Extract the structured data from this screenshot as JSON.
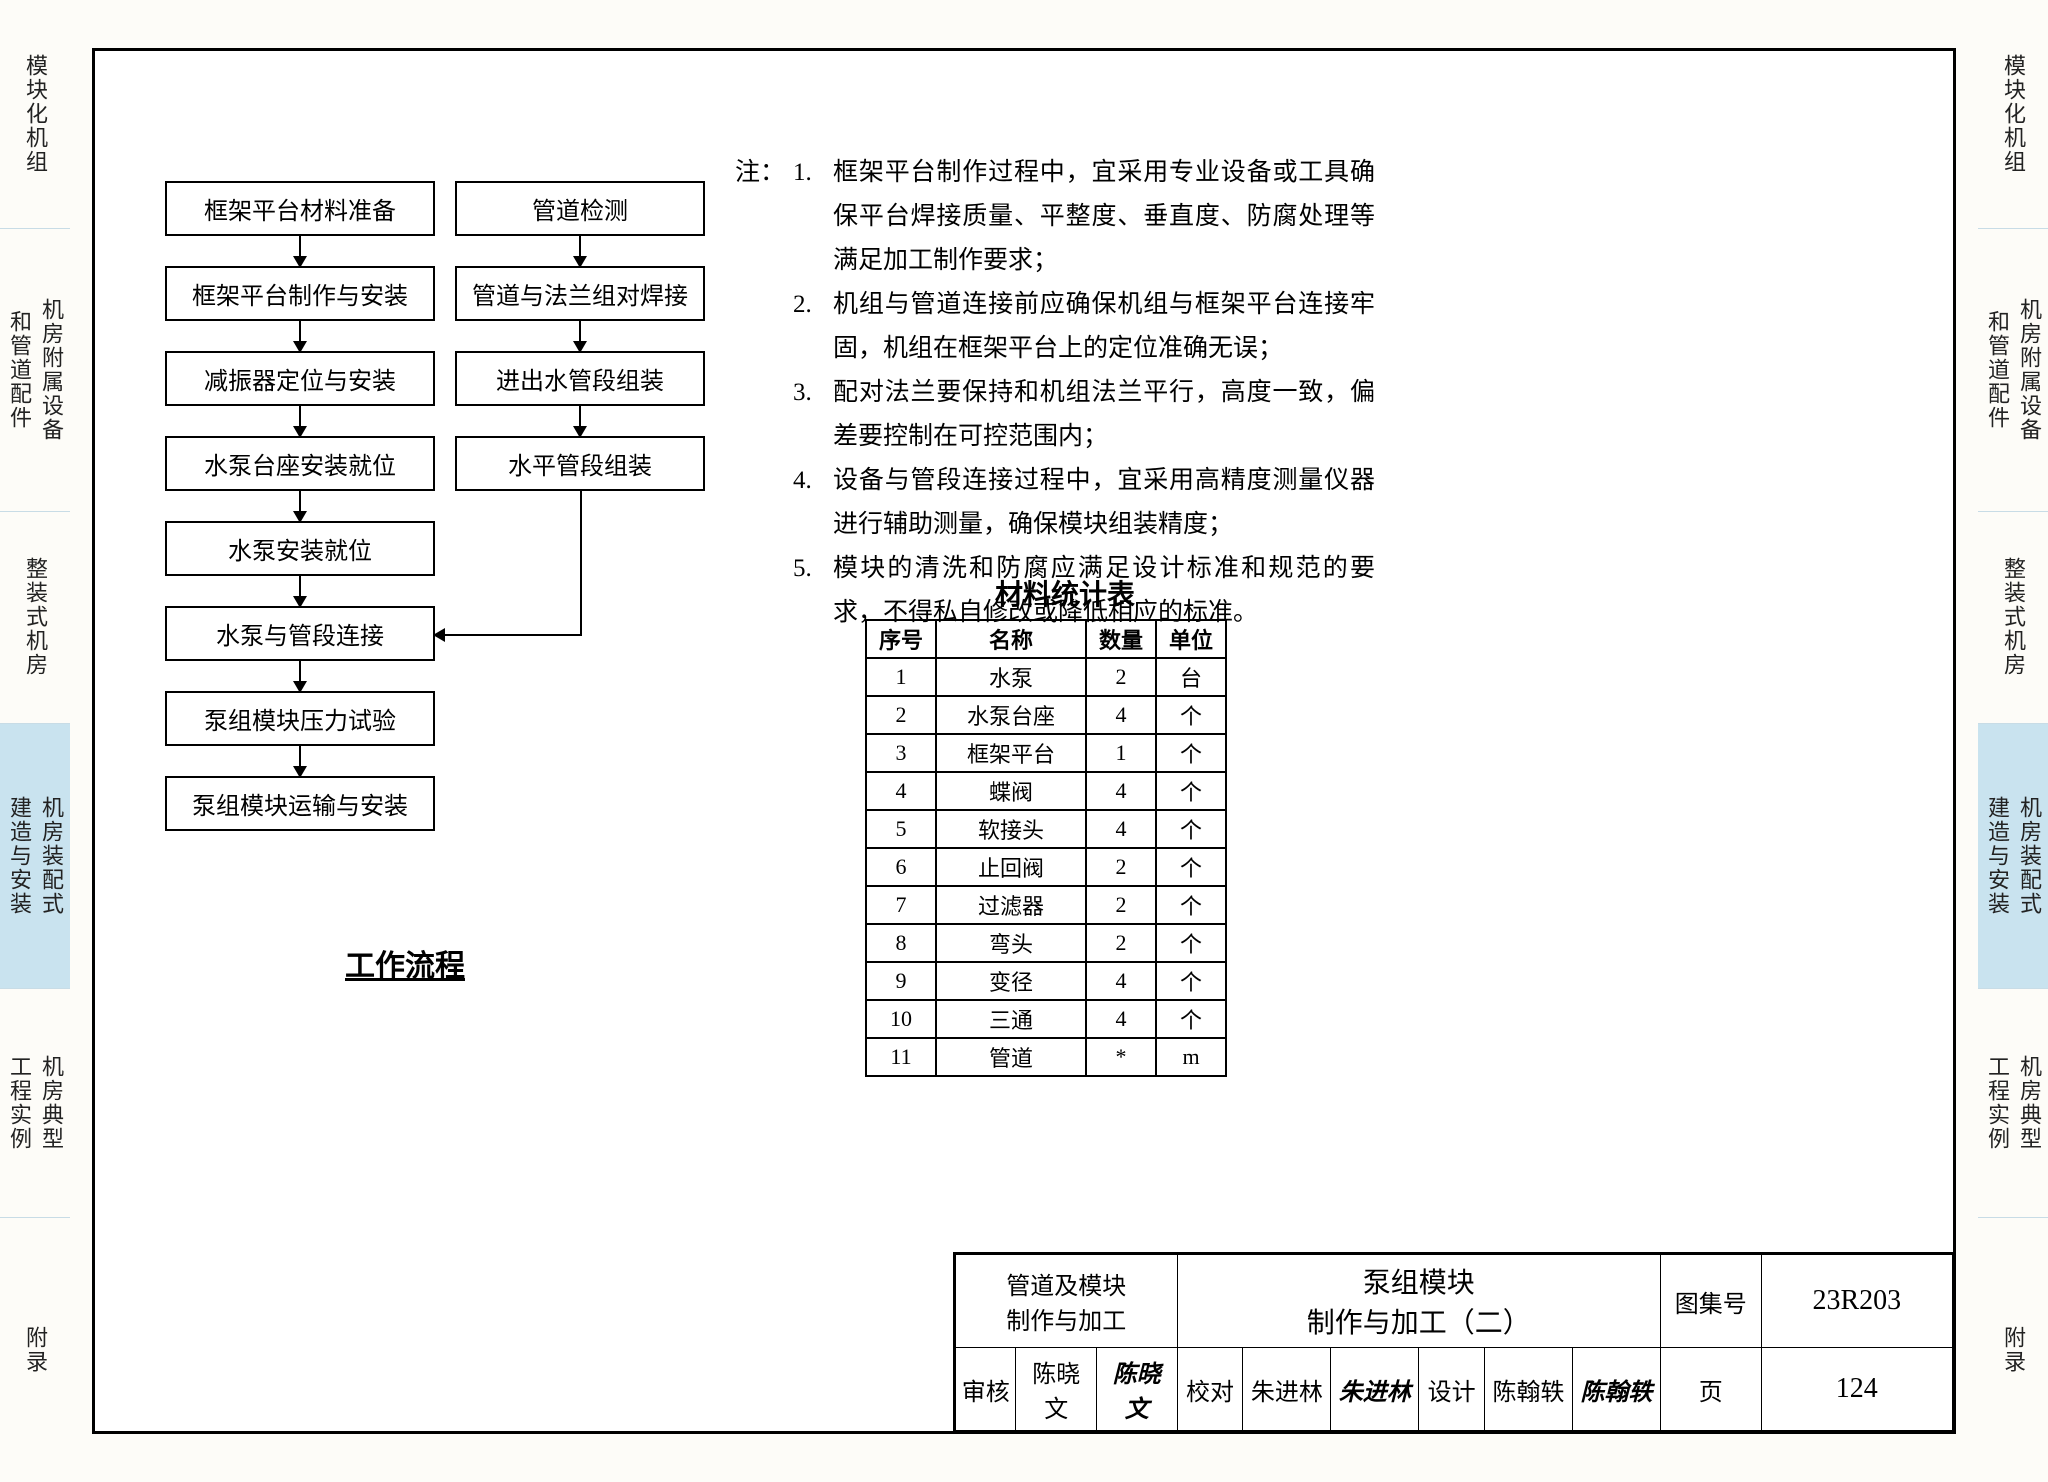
{
  "tabs": [
    {
      "a": "模块化机组",
      "b": ""
    },
    {
      "a": "机房附属设备",
      "b": "和管道配件"
    },
    {
      "a": "整装式机房",
      "b": ""
    },
    {
      "a": "机房装配式",
      "b": "建造与安装"
    },
    {
      "a": "机房典型",
      "b": "工程实例"
    },
    {
      "a": "附录",
      "b": ""
    }
  ],
  "active_tab_index": 3,
  "flowchart": {
    "title": "工作流程",
    "left_col": [
      "框架平台材料准备",
      "框架平台制作与安装",
      "减振器定位与安装",
      "水泵台座安装就位",
      "水泵安装就位",
      "水泵与管段连接",
      "泵组模块压力试验",
      "泵组模块运输与安装"
    ],
    "right_col": [
      "管道检测",
      "管道与法兰组对焊接",
      "进出水管段组装",
      "水平管段组装"
    ]
  },
  "notes": {
    "label": "注：",
    "items": [
      "框架平台制作过程中，宜采用专业设备或工具确保平台焊接质量、平整度、垂直度、防腐处理等满足加工制作要求；",
      "机组与管道连接前应确保机组与框架平台连接牢固，机组在框架平台上的定位准确无误；",
      "配对法兰要保持和机组法兰平行，高度一致，偏差要控制在可控范围内；",
      "设备与管段连接过程中，宜采用高精度测量仪器进行辅助测量，确保模块组装精度；",
      "模块的清洗和防腐应满足设计标准和规范的要求，不得私自修改或降低相应的标准。"
    ]
  },
  "materials": {
    "title": "材料统计表",
    "columns": [
      "序号",
      "名称",
      "数量",
      "单位"
    ],
    "rows": [
      [
        "1",
        "水泵",
        "2",
        "台"
      ],
      [
        "2",
        "水泵台座",
        "4",
        "个"
      ],
      [
        "3",
        "框架平台",
        "1",
        "个"
      ],
      [
        "4",
        "蝶阀",
        "4",
        "个"
      ],
      [
        "5",
        "软接头",
        "4",
        "个"
      ],
      [
        "6",
        "止回阀",
        "2",
        "个"
      ],
      [
        "7",
        "过滤器",
        "2",
        "个"
      ],
      [
        "8",
        "弯头",
        "2",
        "个"
      ],
      [
        "9",
        "变径",
        "4",
        "个"
      ],
      [
        "10",
        "三通",
        "4",
        "个"
      ],
      [
        "11",
        "管道",
        "*",
        "m"
      ]
    ]
  },
  "titleblock": {
    "category_l1": "管道及模块",
    "category_l2": "制作与加工",
    "drawing_l1": "泵组模块",
    "drawing_l2": "制作与加工（二）",
    "set_label": "图集号",
    "set_no": "23R203",
    "page_label": "页",
    "page_no": "124",
    "review_label": "审核",
    "reviewer": "陈晓文",
    "reviewer_sig": "陈晓文",
    "check_label": "校对",
    "checker": "朱进林",
    "checker_sig": "朱进林",
    "design_label": "设计",
    "designer": "陈翰轶",
    "designer_sig": "陈翰轶"
  }
}
